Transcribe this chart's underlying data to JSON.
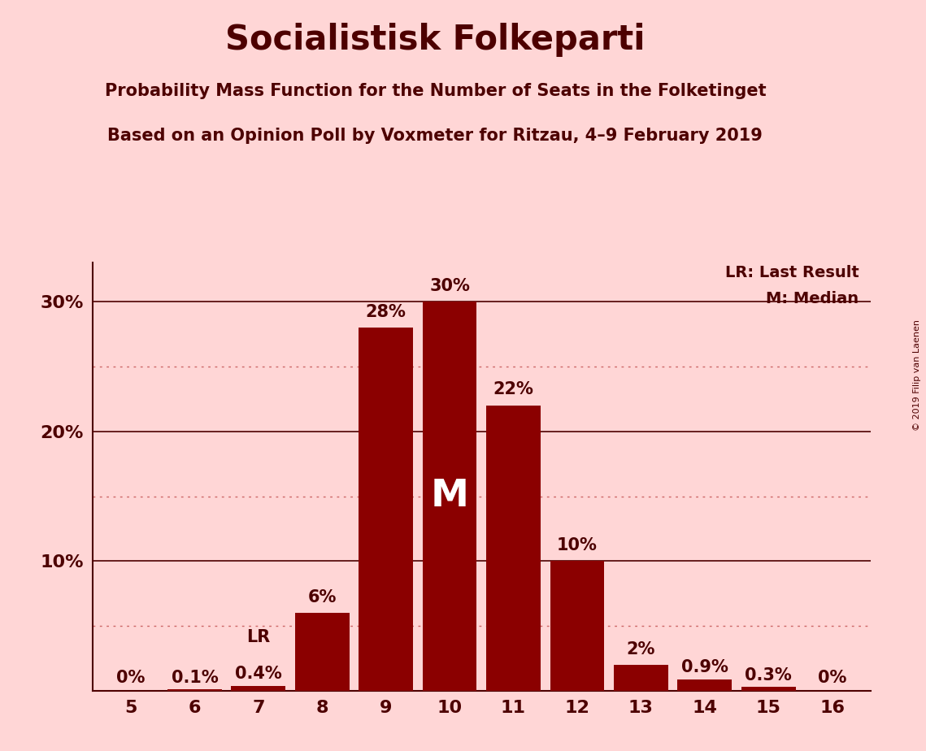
{
  "title": "Socialistisk Folkeparti",
  "subtitle1": "Probability Mass Function for the Number of Seats in the Folketinget",
  "subtitle2": "Based on an Opinion Poll by Voxmeter for Ritzau, 4–9 February 2019",
  "copyright": "© 2019 Filip van Laenen",
  "seats": [
    5,
    6,
    7,
    8,
    9,
    10,
    11,
    12,
    13,
    14,
    15,
    16
  ],
  "probabilities": [
    0.0,
    0.1,
    0.4,
    6.0,
    28.0,
    30.0,
    22.0,
    10.0,
    2.0,
    0.9,
    0.3,
    0.0
  ],
  "bar_color": "#8B0000",
  "background_color": "#FFD6D6",
  "axis_color": "#4D0000",
  "grid_color": "#CC6666",
  "last_result_seat": 7,
  "median_seat": 10,
  "yticks": [
    10,
    20,
    30
  ],
  "ytick_labels": [
    "10%",
    "20%",
    "30%"
  ],
  "dotted_grid_values": [
    5,
    15,
    25
  ],
  "ylim": [
    0,
    33
  ],
  "lr_label": "LR: Last Result",
  "m_label": "M: Median",
  "median_bar_label": "M",
  "lr_bar_label": "LR",
  "prob_labels": [
    "0%",
    "0.1%",
    "0.4%",
    "6%",
    "28%",
    "30%",
    "22%",
    "10%",
    "2%",
    "0.9%",
    "0.3%",
    "0%"
  ]
}
